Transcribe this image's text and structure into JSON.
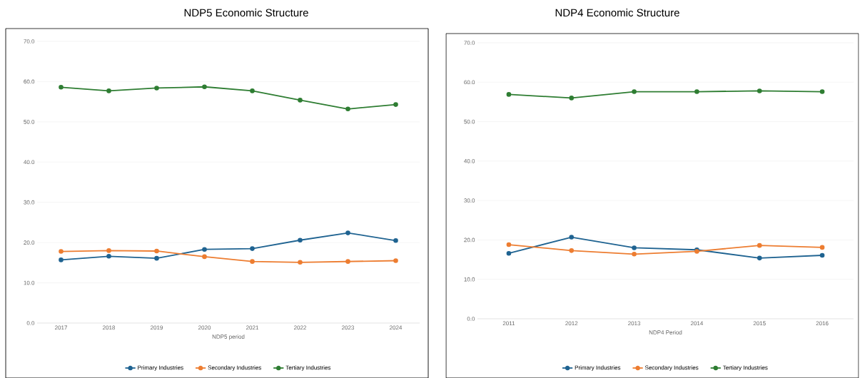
{
  "chart_data": [
    {
      "type": "line",
      "title": "NDP5 Economic Structure",
      "xlabel": "NDP5 period",
      "categories": [
        "2017",
        "2018",
        "2019",
        "2020",
        "2021",
        "2022",
        "2023",
        "2024"
      ],
      "series": [
        {
          "name": "Primary Industries",
          "color": "#1f6391",
          "values": [
            15.7,
            16.6,
            16.1,
            18.3,
            18.5,
            20.6,
            22.4,
            20.5
          ]
        },
        {
          "name": "Secondary Industries",
          "color": "#ed7d31",
          "values": [
            17.8,
            18.0,
            17.9,
            16.5,
            15.3,
            15.1,
            15.3,
            15.5
          ]
        },
        {
          "name": "Tertiary Industries",
          "color": "#2e7d32",
          "values": [
            58.6,
            57.7,
            58.4,
            58.7,
            57.7,
            55.4,
            53.2,
            54.3
          ]
        }
      ],
      "ylim": [
        0,
        70
      ],
      "yticks": [
        {
          "value": 0,
          "label": "0.0"
        },
        {
          "value": 10,
          "label": "10.0"
        },
        {
          "value": 20,
          "label": "20.0"
        },
        {
          "value": 30,
          "label": "30.0"
        },
        {
          "value": 40,
          "label": "40.0"
        },
        {
          "value": 50,
          "label": "50.0"
        },
        {
          "value": 60,
          "label": "60.0"
        },
        {
          "value": 70,
          "label": "70.0"
        }
      ],
      "grid": "y",
      "legend": "bottom",
      "marker": "circle",
      "line_style": "solid"
    },
    {
      "type": "line",
      "title": "NDP4 Economic Structure",
      "xlabel": "NDP4 Period",
      "categories": [
        "2011",
        "2012",
        "2013",
        "2014",
        "2015",
        "2016"
      ],
      "series": [
        {
          "name": "Primary Industries",
          "color": "#1f6391",
          "values": [
            16.6,
            20.7,
            18.0,
            17.5,
            15.4,
            16.1
          ]
        },
        {
          "name": "Secondary Industries",
          "color": "#ed7d31",
          "values": [
            18.8,
            17.3,
            16.4,
            17.1,
            18.6,
            18.1
          ]
        },
        {
          "name": "Tertiary Industries",
          "color": "#2e7d32",
          "values": [
            56.9,
            56.0,
            57.6,
            57.6,
            57.8,
            57.6
          ]
        }
      ],
      "ylim": [
        0,
        70
      ],
      "yticks": [
        {
          "value": 0,
          "label": "0.0"
        },
        {
          "value": 10,
          "label": "10.0"
        },
        {
          "value": 20,
          "label": "20.0"
        },
        {
          "value": 30,
          "label": "30.0"
        },
        {
          "value": 40,
          "label": "40.0"
        },
        {
          "value": 50,
          "label": "50.0"
        },
        {
          "value": 60,
          "label": "60.0"
        },
        {
          "value": 70,
          "label": "70.0"
        }
      ],
      "grid": "y",
      "legend": "bottom",
      "marker": "circle",
      "line_style": "solid"
    }
  ]
}
